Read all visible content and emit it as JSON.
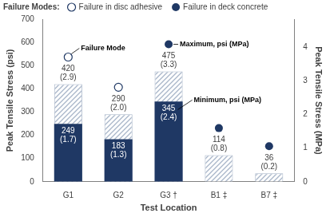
{
  "chart_data": {
    "type": "bar",
    "categories": [
      "G1",
      "G2",
      "G3 †",
      "B1 ‡",
      "B7 ‡"
    ],
    "x_label": "Test Location",
    "y_label": "Peak Tensile Stress (psi)",
    "y2_label": "Peak Tensile Stress (MPa)",
    "ylim": [
      0,
      700
    ],
    "yticks": [
      0,
      100,
      200,
      300,
      400,
      500,
      600,
      700
    ],
    "y2lim": [
      0,
      4.826
    ],
    "y2ticks": [
      0,
      1,
      2,
      3,
      4
    ],
    "grid": false,
    "data_labels": true,
    "legend": "top left",
    "series": [
      {
        "name": "Minimum, psi (MPa)",
        "color": "#1f3864",
        "marker": "solid",
        "values": [
          249,
          183,
          345,
          null,
          null
        ],
        "value_labels": [
          "249\n(1.7)",
          "183\n(1.3)",
          "345\n(2.4)",
          null,
          null
        ]
      },
      {
        "name": "Maximum, psi (MPa)",
        "color": "#a9b6c9",
        "marker": "hatched",
        "values": [
          420,
          290,
          475,
          114,
          36
        ],
        "value_labels": [
          "420\n(2.9)",
          "290\n(2.0)",
          "475\n(3.3)",
          "114\n(0.8)",
          "36\n(0.2)"
        ]
      }
    ],
    "annotations": [
      "Failure Mode"
    ],
    "failure_modes": {
      "title": "Failure Modes:",
      "color": "#1f3864",
      "kinds": [
        {
          "name": "Failure in disc adhesive",
          "marker": "open"
        },
        {
          "name": "Failure in deck concrete",
          "marker": "filled"
        }
      ],
      "values": [
        "Failure in disc adhesive",
        "Failure in disc adhesive",
        "Failure in deck concrete",
        "Failure in deck concrete",
        "Failure in deck concrete"
      ]
    }
  }
}
